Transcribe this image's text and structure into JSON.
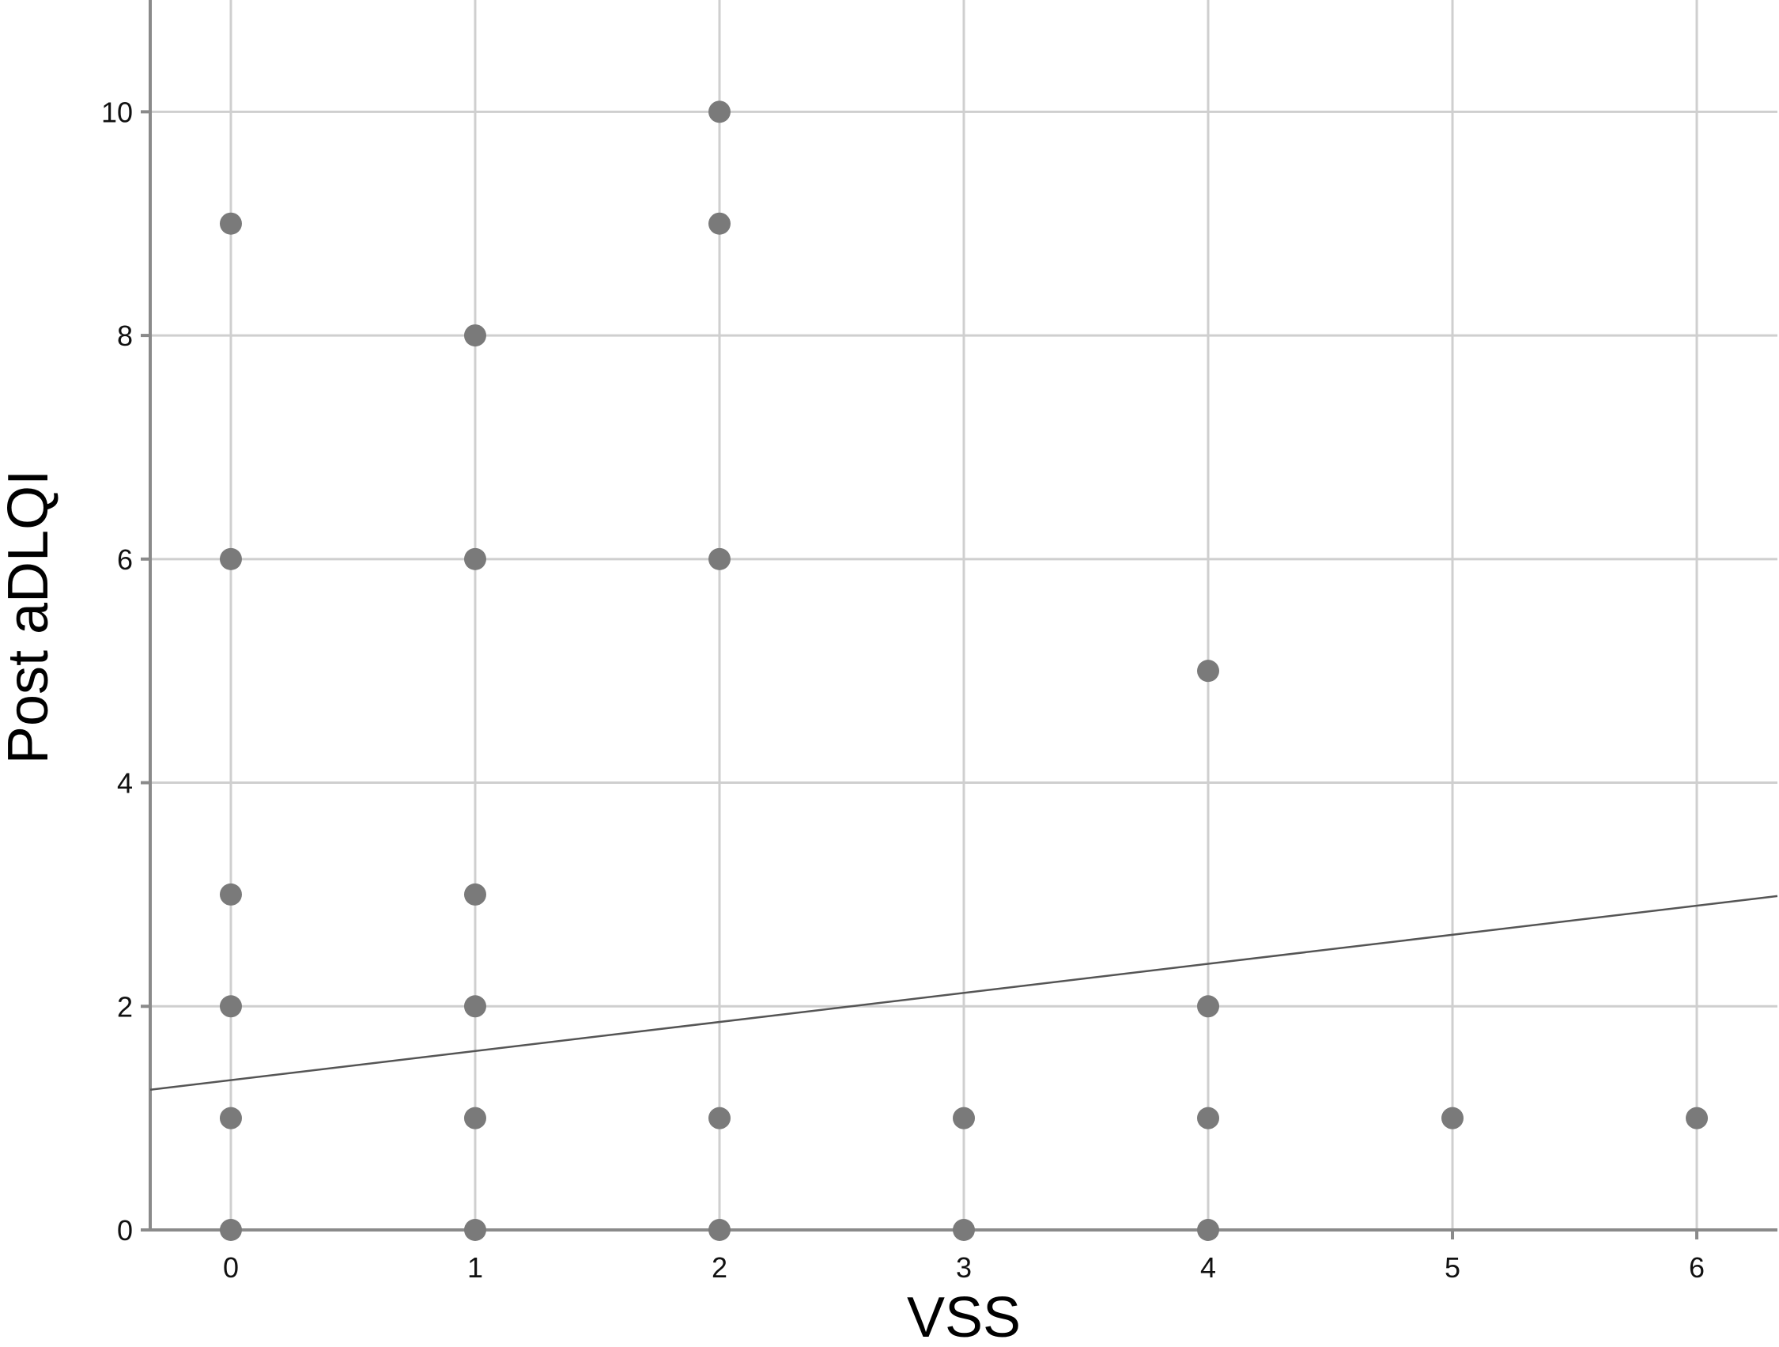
{
  "chart_data": {
    "type": "scatter",
    "title": "",
    "xlabel": "VSS",
    "ylabel": "Post aDLQI",
    "xlim": [
      -0.33,
      6.33
    ],
    "ylim": [
      0,
      11
    ],
    "x_ticks": [
      0,
      1,
      2,
      3,
      4,
      5,
      6
    ],
    "y_ticks": [
      0,
      2,
      4,
      6,
      8,
      10
    ],
    "grid": true,
    "colors": {
      "points": "#7a7a7a",
      "grid": "#cfcfcf",
      "axis": "#8a8a8a",
      "fit_line": "#555555"
    },
    "points": [
      {
        "x": 0,
        "y": 9
      },
      {
        "x": 0,
        "y": 6
      },
      {
        "x": 0,
        "y": 3
      },
      {
        "x": 0,
        "y": 2
      },
      {
        "x": 0,
        "y": 1
      },
      {
        "x": 0,
        "y": 0
      },
      {
        "x": 1,
        "y": 8
      },
      {
        "x": 1,
        "y": 6
      },
      {
        "x": 1,
        "y": 3
      },
      {
        "x": 1,
        "y": 2
      },
      {
        "x": 1,
        "y": 1
      },
      {
        "x": 1,
        "y": 0
      },
      {
        "x": 2,
        "y": 10
      },
      {
        "x": 2,
        "y": 9
      },
      {
        "x": 2,
        "y": 6
      },
      {
        "x": 2,
        "y": 1
      },
      {
        "x": 2,
        "y": 0
      },
      {
        "x": 3,
        "y": 1
      },
      {
        "x": 3,
        "y": 0
      },
      {
        "x": 4,
        "y": 5
      },
      {
        "x": 4,
        "y": 2
      },
      {
        "x": 4,
        "y": 1
      },
      {
        "x": 4,
        "y": 0
      },
      {
        "x": 5,
        "y": 1
      },
      {
        "x": 6,
        "y": 1
      }
    ],
    "fit_line": {
      "intercept": 1.34,
      "slope": 0.26
    }
  }
}
